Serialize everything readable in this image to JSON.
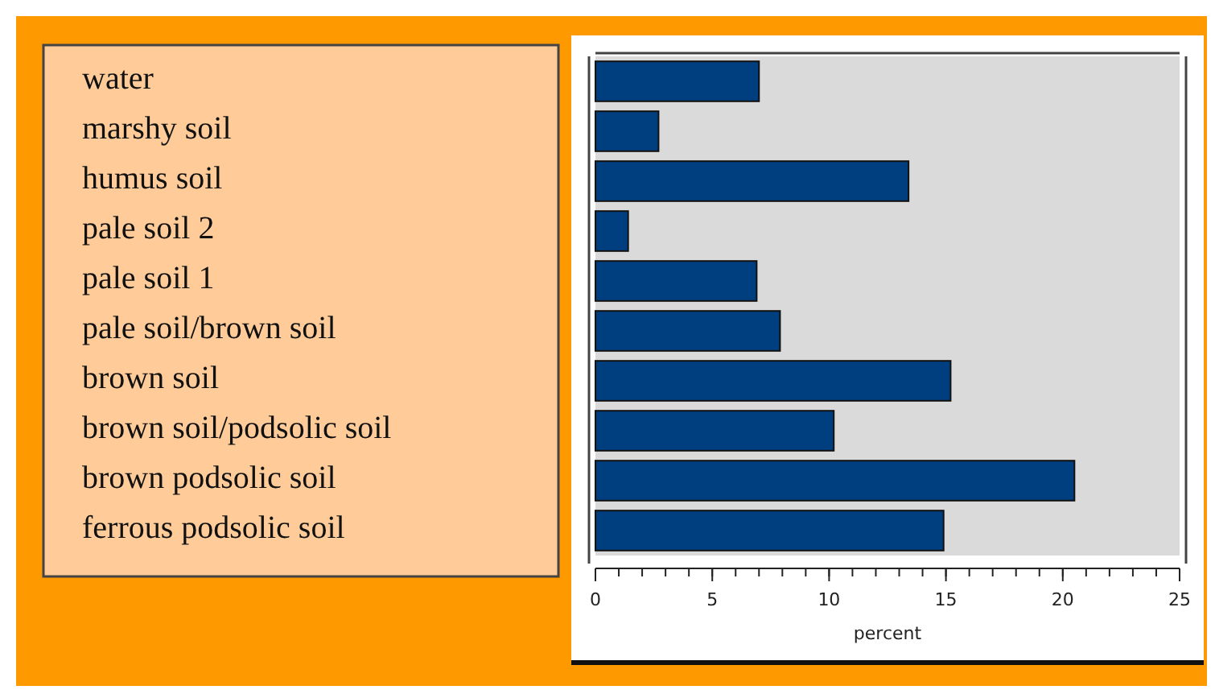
{
  "chart_data": {
    "type": "bar",
    "orientation": "horizontal",
    "categories": [
      "water",
      "marshy soil",
      "humus soil",
      "pale soil 2",
      "pale soil 1",
      "pale soil/brown soil",
      "brown soil",
      "brown soil/podsolic soil",
      "brown podsolic soil",
      "ferrous podsolic soil"
    ],
    "values": [
      7.0,
      2.7,
      13.4,
      1.4,
      6.9,
      7.9,
      15.2,
      10.2,
      20.5,
      14.9
    ],
    "color": "#003f7f",
    "xlim": [
      0,
      25
    ],
    "xticks": [
      0,
      5,
      10,
      15,
      20,
      25
    ],
    "xlabel": "percent"
  }
}
